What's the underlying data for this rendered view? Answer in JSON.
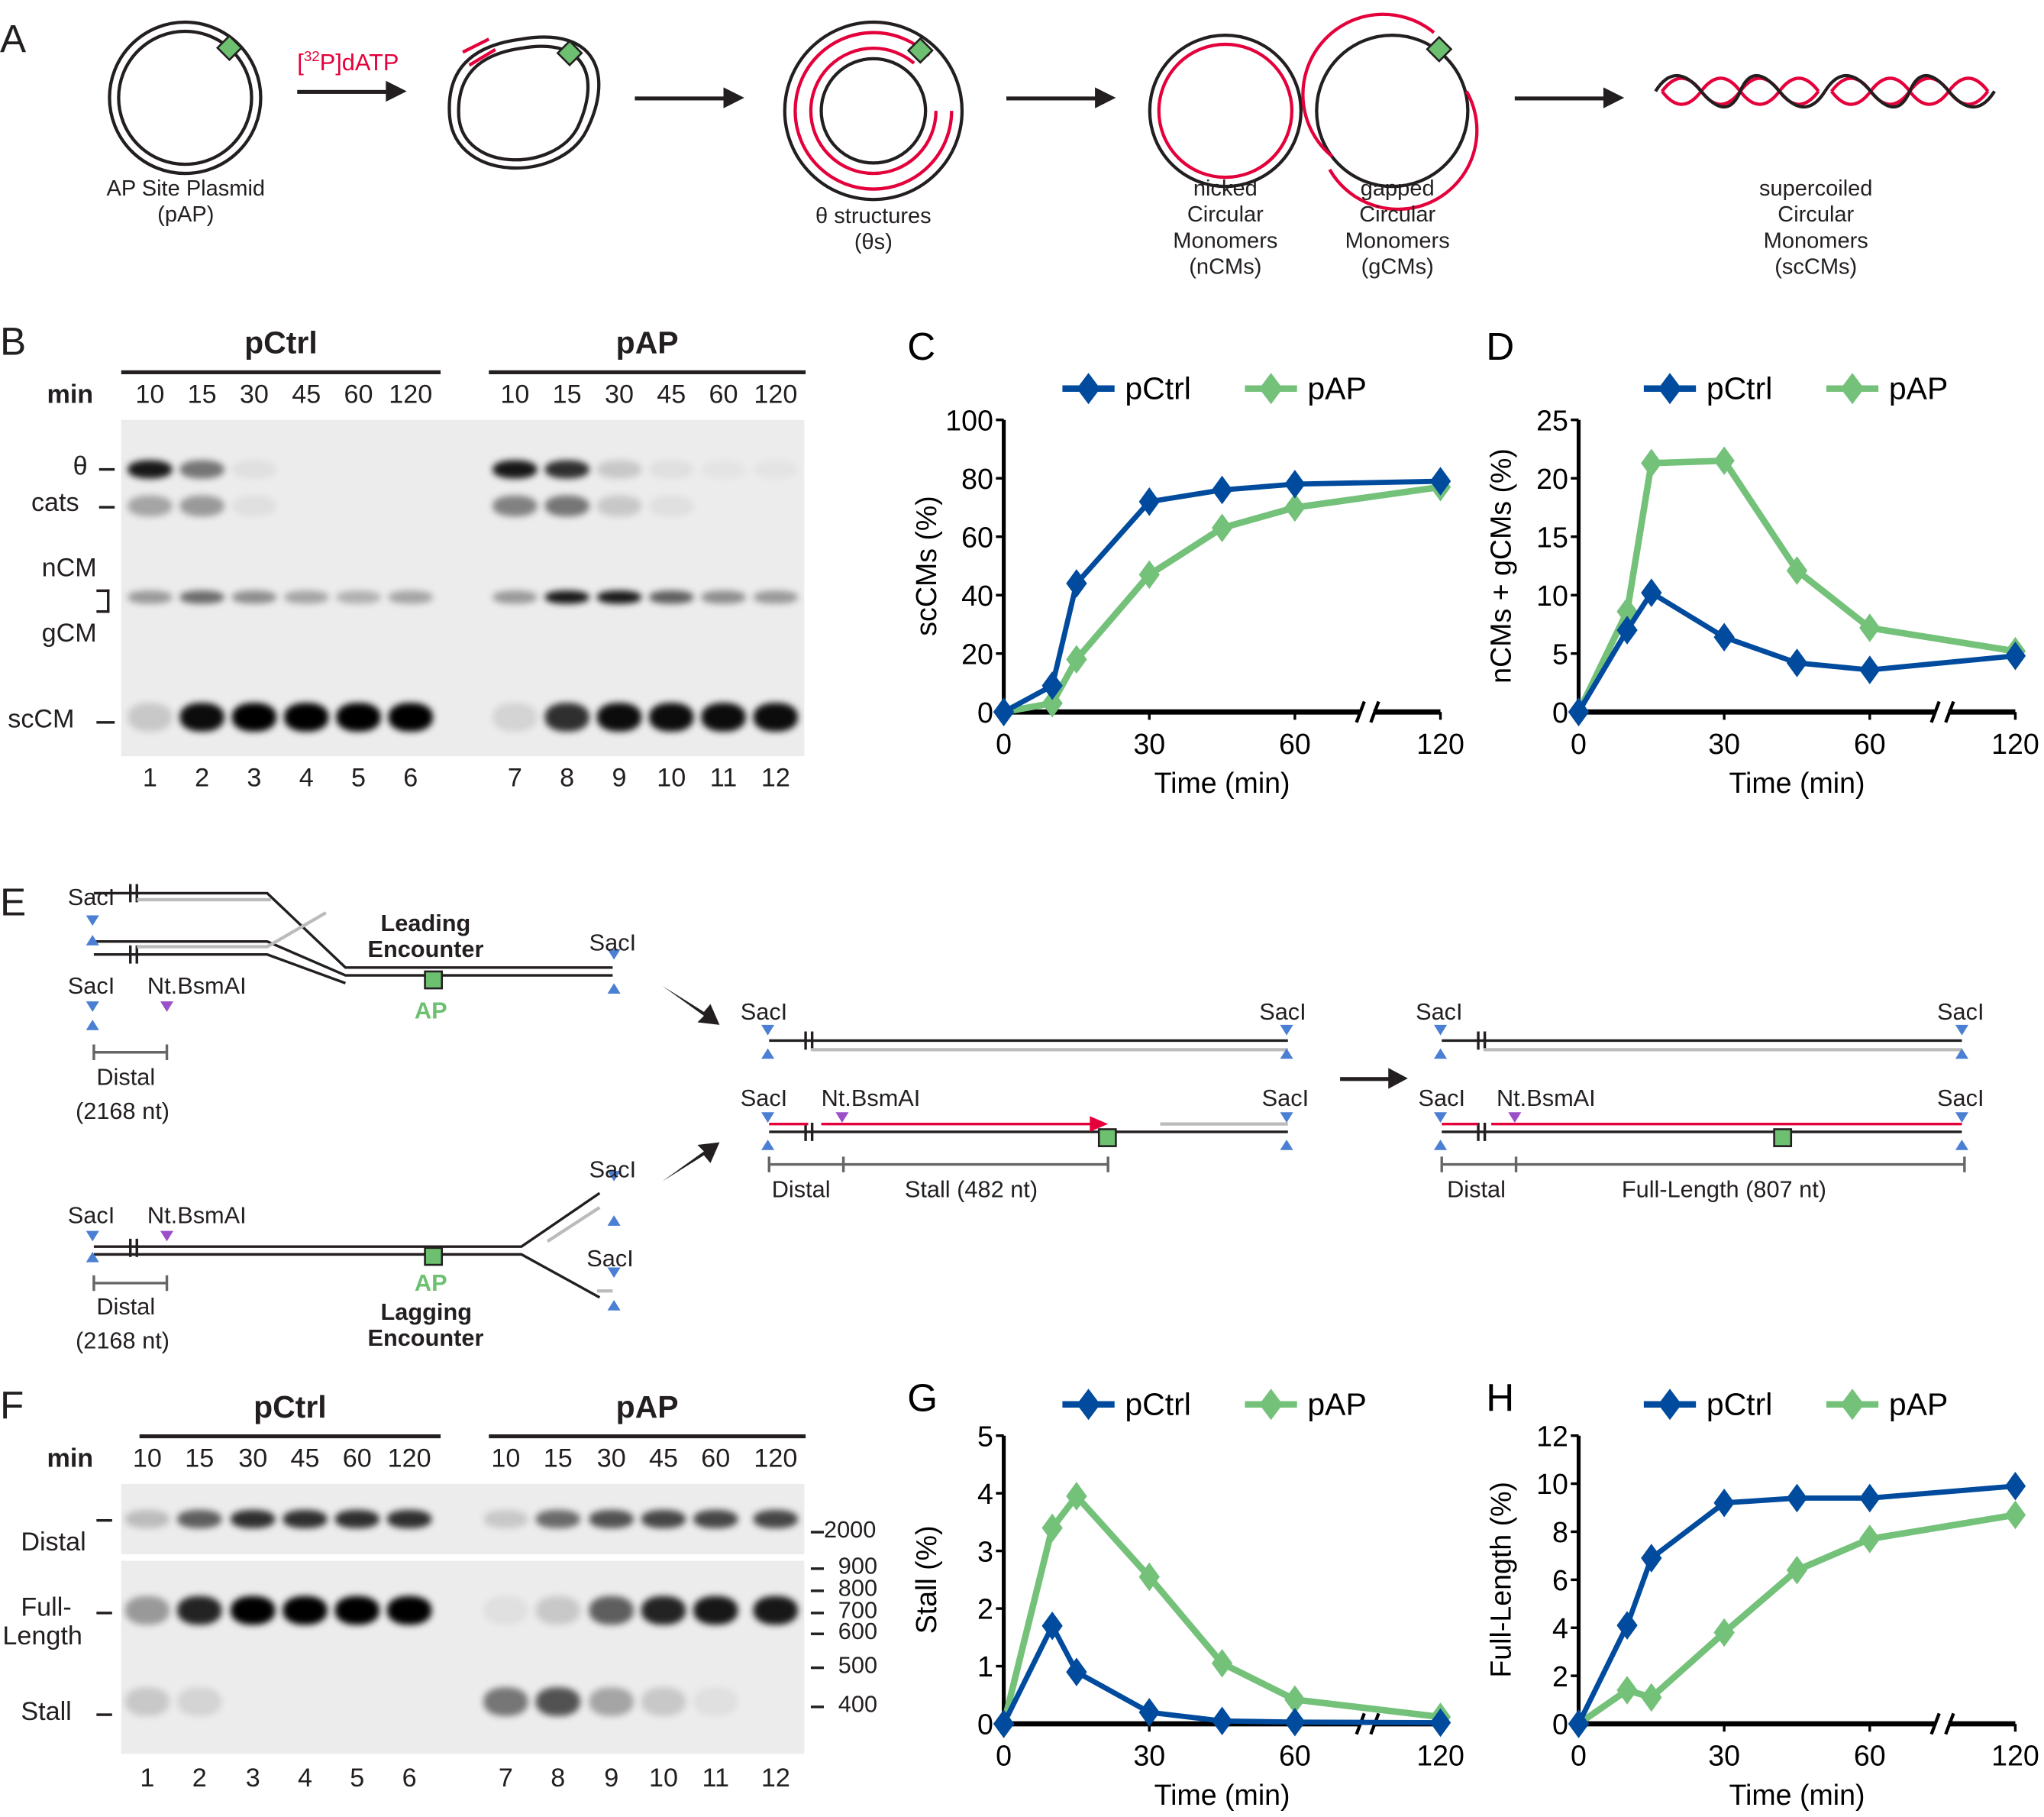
{
  "panelA": {
    "label": "A",
    "reagent_pre": "[",
    "reagent_sup": "32",
    "reagent_post": "P]dATP",
    "plasmid": [
      "AP Site Plasmid",
      "(pAP)"
    ],
    "theta": [
      "θ structures",
      "(θs)"
    ],
    "nicked": [
      "nicked",
      "Circular",
      "Monomers",
      "(nCMs)"
    ],
    "gapped": [
      "gapped",
      "Circular",
      "Monomers",
      "(gCMs)"
    ],
    "supercoiled": [
      "supercoiled",
      "Circular",
      "Monomers",
      "(scCMs)"
    ],
    "colors": {
      "new_strand": "#e4003a",
      "ap_site": "#6cc070"
    }
  },
  "panelB": {
    "label": "B",
    "groups": [
      "pCtrl",
      "pAP"
    ],
    "min_label": "min",
    "times": [
      "10",
      "15",
      "30",
      "45",
      "60",
      "120"
    ],
    "bands": [
      "θ",
      "cats",
      "nCM",
      "gCM",
      "scCM"
    ],
    "lanes": [
      "1",
      "2",
      "3",
      "4",
      "5",
      "6",
      "7",
      "8",
      "9",
      "10",
      "11",
      "12"
    ],
    "intensity": {
      "theta": [
        0.9,
        0.5,
        0.05,
        0,
        0,
        0,
        0.9,
        0.8,
        0.15,
        0.05,
        0.03,
        0.03
      ],
      "cats": [
        0.3,
        0.35,
        0.05,
        0,
        0,
        0,
        0.45,
        0.5,
        0.15,
        0.05,
        0,
        0
      ],
      "nCM": [
        0.35,
        0.55,
        0.4,
        0.3,
        0.25,
        0.3,
        0.35,
        0.9,
        0.9,
        0.6,
        0.4,
        0.35
      ],
      "scCM": [
        0.15,
        0.95,
        1,
        1,
        1,
        1,
        0.1,
        0.8,
        0.95,
        0.95,
        0.95,
        0.95
      ]
    }
  },
  "panelE": {
    "label": "E",
    "sacI": "SacI",
    "nick": "Nt.BsmAI",
    "leading": [
      "Leading",
      "Encounter"
    ],
    "lagging": [
      "Lagging",
      "Encounter"
    ],
    "ap": "AP",
    "distal": "Distal",
    "distal_nt": "(2168 nt)",
    "stall": "Stall (482 nt)",
    "full": "Full-Length (807 nt)"
  },
  "panelF": {
    "label": "F",
    "groups": [
      "pCtrl",
      "pAP"
    ],
    "min_label": "min",
    "times": [
      "10",
      "15",
      "30",
      "45",
      "60",
      "120"
    ],
    "bands": [
      "Distal",
      "Full-",
      "Length",
      "Stall"
    ],
    "markers": [
      "2000",
      "900",
      "800",
      "700",
      "600",
      "500",
      "400"
    ],
    "lanes": [
      "1",
      "2",
      "3",
      "4",
      "5",
      "6",
      "7",
      "8",
      "9",
      "10",
      "11",
      "12"
    ],
    "intensity": {
      "distal": [
        0.2,
        0.6,
        0.8,
        0.8,
        0.8,
        0.8,
        0.15,
        0.55,
        0.65,
        0.7,
        0.7,
        0.7
      ],
      "full": [
        0.35,
        0.85,
        1,
        1,
        1,
        1,
        0.05,
        0.15,
        0.6,
        0.85,
        0.9,
        0.9
      ],
      "stall": [
        0.15,
        0.1,
        0,
        0,
        0,
        0,
        0.5,
        0.65,
        0.3,
        0.15,
        0.05,
        0
      ]
    }
  },
  "chart_data": [
    {
      "panel": "C",
      "type": "line",
      "xlabel": "Time (min)",
      "ylabel": "scCMs (%)",
      "ylim": [
        0,
        100
      ],
      "yticks": [
        0,
        20,
        40,
        60,
        80,
        100
      ],
      "xticks": [
        0,
        30,
        60,
        120
      ],
      "x_axis_break": "between 60 and 120",
      "legend": "top",
      "x": [
        0,
        10,
        15,
        30,
        45,
        60,
        120
      ],
      "series": [
        {
          "name": "pCtrl",
          "color": "#004b9d",
          "values": [
            0,
            9,
            44,
            72,
            76,
            78,
            79
          ]
        },
        {
          "name": "pAP",
          "color": "#74c17a",
          "values": [
            0,
            3,
            18,
            47,
            63,
            70,
            77
          ]
        }
      ]
    },
    {
      "panel": "D",
      "type": "line",
      "xlabel": "Time (min)",
      "ylabel": "nCMs + gCMs (%)",
      "ylim": [
        0,
        25
      ],
      "yticks": [
        0,
        5,
        10,
        15,
        20,
        25
      ],
      "xticks": [
        0,
        30,
        60,
        120
      ],
      "x_axis_break": "between 60 and 120",
      "legend": "top",
      "x": [
        0,
        10,
        15,
        30,
        45,
        60,
        120
      ],
      "series": [
        {
          "name": "pCtrl",
          "color": "#004b9d",
          "values": [
            0,
            7,
            10.2,
            6.4,
            4.2,
            3.6,
            4.8
          ]
        },
        {
          "name": "pAP",
          "color": "#74c17a",
          "values": [
            0,
            8.6,
            21.3,
            21.5,
            12.1,
            7.2,
            5.2
          ]
        }
      ]
    },
    {
      "panel": "G",
      "type": "line",
      "xlabel": "Time (min)",
      "ylabel": "Stall (%)",
      "ylim": [
        0,
        5
      ],
      "yticks": [
        0,
        1,
        2,
        3,
        4,
        5
      ],
      "xticks": [
        0,
        30,
        60,
        120
      ],
      "x_axis_break": "between 60 and 120",
      "legend": "top",
      "x": [
        0,
        10,
        15,
        30,
        45,
        60,
        120
      ],
      "series": [
        {
          "name": "pCtrl",
          "color": "#004b9d",
          "values": [
            0,
            1.7,
            0.9,
            0.2,
            0.05,
            0.03,
            0.02
          ]
        },
        {
          "name": "pAP",
          "color": "#74c17a",
          "values": [
            0,
            3.4,
            3.95,
            2.55,
            1.05,
            0.42,
            0.12
          ]
        }
      ]
    },
    {
      "panel": "H",
      "type": "line",
      "xlabel": "Time (min)",
      "ylabel": "Full-Length (%)",
      "ylim": [
        0,
        12
      ],
      "yticks": [
        0,
        2,
        4,
        6,
        8,
        10,
        12
      ],
      "xticks": [
        0,
        30,
        60,
        120
      ],
      "x_axis_break": "between 60 and 120",
      "legend": "top",
      "x": [
        0,
        10,
        15,
        30,
        45,
        60,
        120
      ],
      "series": [
        {
          "name": "pCtrl",
          "color": "#004b9d",
          "values": [
            0,
            4.1,
            6.9,
            9.2,
            9.4,
            9.4,
            9.9
          ]
        },
        {
          "name": "pAP",
          "color": "#74c17a",
          "values": [
            0,
            1.4,
            1.1,
            3.8,
            6.4,
            7.7,
            8.7
          ]
        }
      ]
    }
  ]
}
